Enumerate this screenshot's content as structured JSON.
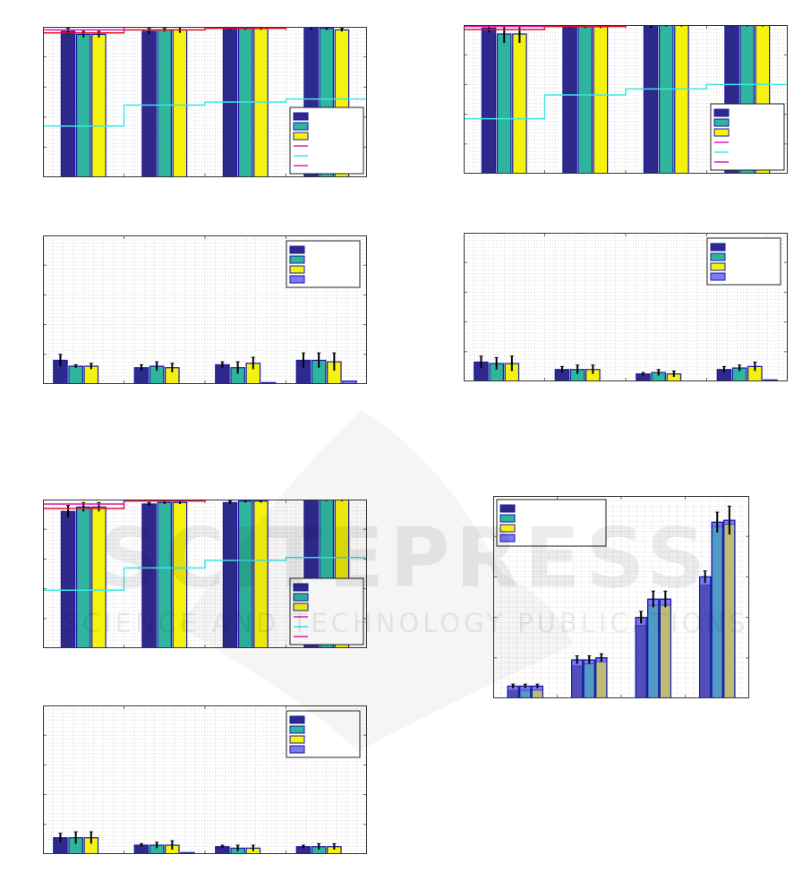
{
  "colors": {
    "navy": "#2e2a8c",
    "teal": "#2fb59e",
    "yellow": "#f5f20f",
    "blue": "#7a7bf5",
    "cyan": "#3fe6e6",
    "magenta": "#e01ab0",
    "red": "#e0102a",
    "legend_line_1": "#e01ab0",
    "legend_line_2": "#3fe6e6"
  },
  "watermark": {
    "brand": "SCITEPRESS",
    "tagline": "SCIENCE AND TECHNOLOGY PUBLICATIONS"
  },
  "chart_data": [
    {
      "type": "bar",
      "grid": true,
      "legend": "bottom-right",
      "legend_entries": 6,
      "ylim": [
        0,
        1
      ],
      "series": [
        {
          "color": "navy",
          "values": [
            0.97,
            0.97,
            0.99,
            0.99
          ],
          "err": [
            0.02,
            0.02,
            0.01,
            0.01
          ]
        },
        {
          "color": "teal",
          "values": [
            0.95,
            0.98,
            0.99,
            0.99
          ],
          "err": [
            0.02,
            0.01,
            0.01,
            0.01
          ]
        },
        {
          "color": "yellow",
          "values": [
            0.95,
            0.98,
            0.99,
            0.98
          ],
          "err": [
            0.02,
            0.02,
            0.01,
            0.01
          ]
        }
      ],
      "steps": [
        {
          "color": "cyan",
          "values": [
            0.34,
            0.48,
            0.5,
            0.52
          ]
        },
        {
          "color": "red",
          "values": [
            0.96,
            0.98,
            0.99,
            1.0
          ]
        },
        {
          "color": "magenta",
          "values": [
            0.98,
            1.0,
            1.0,
            1.0
          ]
        }
      ]
    },
    {
      "type": "bar",
      "grid": true,
      "legend": "top-right",
      "legend_entries": 4,
      "ylim": [
        0,
        1
      ],
      "series": [
        {
          "color": "navy",
          "values": [
            0.16,
            0.11,
            0.13,
            0.16
          ],
          "err": [
            0.04,
            0.02,
            0.02,
            0.05
          ]
        },
        {
          "color": "teal",
          "values": [
            0.12,
            0.12,
            0.11,
            0.16
          ],
          "err": [
            0.01,
            0.03,
            0.04,
            0.05
          ]
        },
        {
          "color": "yellow",
          "values": [
            0.12,
            0.11,
            0.14,
            0.15
          ],
          "err": [
            0.02,
            0.03,
            0.04,
            0.06
          ]
        },
        {
          "color": "blue",
          "values": [
            0.0,
            0.0,
            0.01,
            0.02
          ],
          "err": [
            0,
            0,
            0,
            0
          ]
        }
      ]
    },
    {
      "type": "bar",
      "grid": true,
      "legend": "bottom-right",
      "legend_entries": 6,
      "ylim": [
        0,
        1
      ],
      "series": [
        {
          "color": "navy",
          "values": [
            0.92,
            0.97,
            0.98,
            1.0
          ],
          "err": [
            0.04,
            0.01,
            0.01,
            0.01
          ]
        },
        {
          "color": "teal",
          "values": [
            0.95,
            0.98,
            0.99,
            1.0
          ],
          "err": [
            0.03,
            0.01,
            0.01,
            0.01
          ]
        },
        {
          "color": "yellow",
          "values": [
            0.95,
            0.98,
            0.99,
            1.0
          ],
          "err": [
            0.03,
            0.01,
            0.01,
            0.01
          ]
        }
      ],
      "steps": [
        {
          "color": "cyan",
          "values": [
            0.39,
            0.54,
            0.59,
            0.61
          ]
        },
        {
          "color": "red",
          "values": [
            0.94,
            0.99,
            1.0,
            1.0
          ]
        },
        {
          "color": "magenta",
          "values": [
            0.97,
            1.0,
            1.0,
            1.0
          ]
        }
      ]
    },
    {
      "type": "bar",
      "grid": true,
      "legend": "top-right",
      "legend_entries": 4,
      "ylim": [
        0,
        1
      ],
      "series": [
        {
          "color": "navy",
          "values": [
            0.11,
            0.06,
            0.05,
            0.05
          ],
          "err": [
            0.03,
            0.01,
            0.01,
            0.01
          ]
        },
        {
          "color": "teal",
          "values": [
            0.11,
            0.06,
            0.04,
            0.05
          ],
          "err": [
            0.04,
            0.02,
            0.02,
            0.02
          ]
        },
        {
          "color": "yellow",
          "values": [
            0.11,
            0.06,
            0.04,
            0.05
          ],
          "err": [
            0.04,
            0.03,
            0.02,
            0.02
          ]
        },
        {
          "color": "blue",
          "values": [
            0.0,
            0.01,
            0.0,
            0.0
          ],
          "err": [
            0,
            0,
            0,
            0
          ]
        }
      ]
    },
    {
      "type": "bar",
      "grid": true,
      "legend": "bottom-right",
      "legend_entries": 6,
      "ylim": [
        0,
        1
      ],
      "series": [
        {
          "color": "navy",
          "values": [
            0.98,
            0.99,
            0.99,
            1.0
          ],
          "err": [
            0.03,
            0.01,
            0.01,
            0.01
          ]
        },
        {
          "color": "teal",
          "values": [
            0.94,
            0.99,
            1.0,
            1.0
          ],
          "err": [
            0.06,
            0.01,
            0.01,
            0.01
          ]
        },
        {
          "color": "yellow",
          "values": [
            0.94,
            0.99,
            1.0,
            1.0
          ],
          "err": [
            0.06,
            0.01,
            0.01,
            0.01
          ]
        }
      ],
      "steps": [
        {
          "color": "cyan",
          "values": [
            0.37,
            0.53,
            0.57,
            0.6
          ]
        },
        {
          "color": "red",
          "values": [
            0.97,
            0.99,
            1.0,
            1.0
          ]
        },
        {
          "color": "magenta",
          "values": [
            0.99,
            1.0,
            1.0,
            1.0
          ]
        }
      ]
    },
    {
      "type": "bar",
      "grid": true,
      "legend": "top-right",
      "legend_entries": 4,
      "ylim": [
        0,
        1
      ],
      "series": [
        {
          "color": "navy",
          "values": [
            0.13,
            0.08,
            0.05,
            0.08
          ],
          "err": [
            0.04,
            0.02,
            0.01,
            0.02
          ]
        },
        {
          "color": "teal",
          "values": [
            0.12,
            0.08,
            0.06,
            0.09
          ],
          "err": [
            0.04,
            0.03,
            0.02,
            0.02
          ]
        },
        {
          "color": "yellow",
          "values": [
            0.12,
            0.08,
            0.05,
            0.1
          ],
          "err": [
            0.05,
            0.03,
            0.02,
            0.03
          ]
        },
        {
          "color": "blue",
          "values": [
            0.0,
            0.0,
            0.0,
            0.01
          ],
          "err": [
            0,
            0,
            0,
            0
          ]
        }
      ]
    },
    {
      "type": "bar",
      "grid": true,
      "legend": "top-left",
      "legend_entries": 4,
      "ylim": [
        0,
        1
      ],
      "series": [
        {
          "color": "blue",
          "values": [
            0.06,
            0.19,
            0.4,
            0.6
          ],
          "err": [
            0.01,
            0.02,
            0.03,
            0.03
          ]
        },
        {
          "color": "blue",
          "values": [
            0.06,
            0.19,
            0.49,
            0.87
          ],
          "err": [
            0.01,
            0.02,
            0.04,
            0.05
          ]
        },
        {
          "color": "blue",
          "values": [
            0.06,
            0.2,
            0.49,
            0.88
          ],
          "err": [
            0.01,
            0.02,
            0.04,
            0.07
          ]
        }
      ],
      "overlay": [
        {
          "color": "navy",
          "values": [
            0.04,
            0.16,
            0.36,
            0.56
          ]
        },
        {
          "color": "teal",
          "values": [
            0.04,
            0.17,
            0.46,
            0.85
          ]
        },
        {
          "color": "yellow",
          "values": [
            0.04,
            0.18,
            0.46,
            0.86
          ]
        }
      ]
    }
  ]
}
